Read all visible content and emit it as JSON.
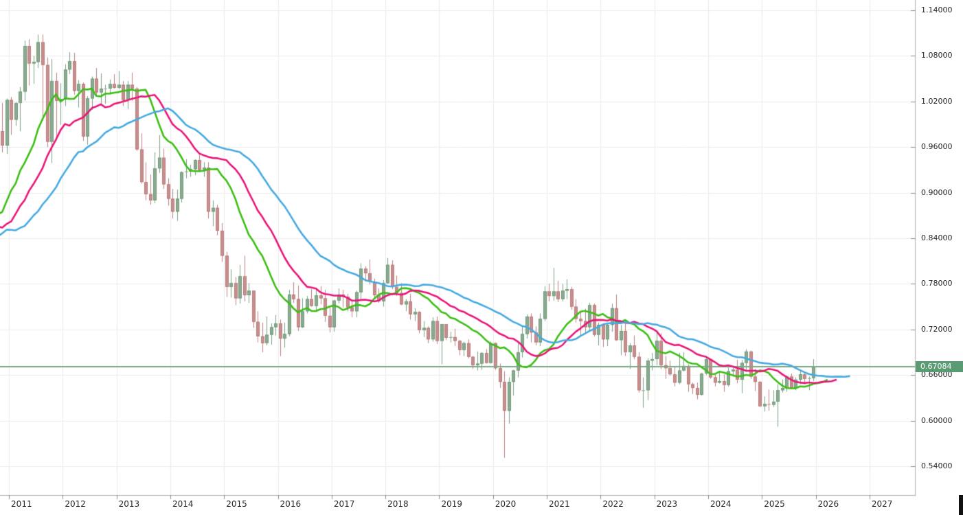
{
  "chart_data": {
    "type": "candlestick",
    "timeframe": "monthly",
    "x_axis": {
      "labels": [
        "2011",
        "2012",
        "2013",
        "2014",
        "2015",
        "2016",
        "2017",
        "2018",
        "2019",
        "2020",
        "2021",
        "2022",
        "2023",
        "2024",
        "2025",
        "2026",
        "2027"
      ]
    },
    "y_axis": {
      "tick_labels": [
        "1.14000",
        "1.08000",
        "1.02000",
        "0.96000",
        "0.90000",
        "0.84000",
        "0.78000",
        "0.72000",
        "0.66000",
        "0.60000",
        "0.54000"
      ],
      "tick_values": [
        1.14,
        1.08,
        1.02,
        0.96,
        0.9,
        0.84,
        0.78,
        0.72,
        0.66,
        0.6,
        0.54
      ],
      "min": 0.54,
      "max": 1.14,
      "grid": true
    },
    "price_line": {
      "value": 0.67084,
      "label": "0.67084"
    },
    "colors": {
      "background": "#ffffff",
      "grid": "#ececec",
      "axis_line": "#b2b2b2",
      "tick_mark": "#8a8a8a",
      "axis_text": "#262626",
      "up_fill": "#8caa91",
      "up_stroke": "#6f9a78",
      "up_wick": "#79a083",
      "down_fill": "#c88f8e",
      "down_stroke": "#b87e7d",
      "down_wick": "#bb807f",
      "price_line": "#7aa882",
      "badge_bg": "#5a9b73",
      "badge_text": "#ffffff",
      "scroll_fragment": "#111111"
    },
    "moving_averages": [
      {
        "name": "fast-ma-green",
        "period": 12,
        "shift_months": 3,
        "color": "#3cbe14"
      },
      {
        "name": "mid-ma-pink",
        "period": 20,
        "shift_months": 5,
        "color": "#e91578"
      },
      {
        "name": "slow-ma-blue",
        "period": 32,
        "shift_months": 8,
        "color": "#46aae1"
      }
    ],
    "ma_seed_closes": {
      "start_month": "2008-01",
      "values": [
        0.885,
        0.929,
        0.913,
        0.936,
        0.953,
        0.958,
        0.932,
        0.86,
        0.799,
        0.67,
        0.648,
        0.698,
        0.64,
        0.639,
        0.691,
        0.731,
        0.804,
        0.806,
        0.836,
        0.842,
        0.882,
        0.901,
        0.915,
        0.898,
        0.887,
        0.894,
        0.916,
        0.925,
        0.847,
        0.84,
        0.905,
        0.894,
        0.967,
        0.981
      ]
    },
    "candles": {
      "start_month": "2010-11",
      "fields": [
        "open",
        "high",
        "low",
        "close"
      ],
      "ohlc": [
        [
          0.981,
          1.018,
          0.953,
          0.962
        ],
        [
          0.962,
          1.024,
          0.951,
          1.022
        ],
        [
          1.022,
          1.026,
          0.976,
          0.996
        ],
        [
          0.996,
          1.019,
          0.988,
          1.018
        ],
        [
          1.018,
          1.039,
          0.981,
          1.033
        ],
        [
          1.033,
          1.1,
          1.021,
          1.093
        ],
        [
          1.093,
          1.102,
          1.041,
          1.07
        ],
        [
          1.07,
          1.08,
          1.043,
          1.072
        ],
        [
          1.072,
          1.108,
          1.064,
          1.098
        ],
        [
          1.098,
          1.108,
          0.995,
          1.068
        ],
        [
          1.068,
          1.078,
          0.96,
          0.967
        ],
        [
          0.967,
          1.076,
          0.939,
          1.047
        ],
        [
          1.047,
          1.058,
          0.969,
          1.021
        ],
        [
          1.021,
          1.044,
          0.989,
          1.023
        ],
        [
          1.023,
          1.069,
          1.014,
          1.062
        ],
        [
          1.062,
          1.085,
          1.056,
          1.073
        ],
        [
          1.073,
          1.084,
          1.029,
          1.034
        ],
        [
          1.034,
          1.048,
          1.012,
          1.043
        ],
        [
          1.043,
          1.045,
          0.968,
          0.974
        ],
        [
          0.974,
          1.027,
          0.963,
          1.024
        ],
        [
          1.024,
          1.053,
          1.009,
          1.05
        ],
        [
          1.05,
          1.064,
          1.029,
          1.032
        ],
        [
          1.032,
          1.057,
          1.016,
          1.037
        ],
        [
          1.037,
          1.042,
          1.017,
          1.037
        ],
        [
          1.037,
          1.049,
          1.029,
          1.043
        ],
        [
          1.043,
          1.056,
          1.037,
          1.038
        ],
        [
          1.038,
          1.06,
          1.036,
          1.042
        ],
        [
          1.042,
          1.047,
          1.014,
          1.022
        ],
        [
          1.022,
          1.047,
          1.01,
          1.042
        ],
        [
          1.042,
          1.058,
          1.021,
          1.037
        ],
        [
          1.037,
          1.039,
          0.955,
          0.957
        ],
        [
          0.957,
          0.978,
          0.912,
          0.914
        ],
        [
          0.914,
          0.94,
          0.89,
          0.898
        ],
        [
          0.898,
          0.924,
          0.884,
          0.89
        ],
        [
          0.89,
          0.953,
          0.886,
          0.932
        ],
        [
          0.932,
          0.976,
          0.926,
          0.946
        ],
        [
          0.946,
          0.958,
          0.905,
          0.911
        ],
        [
          0.911,
          0.919,
          0.883,
          0.892
        ],
        [
          0.892,
          0.905,
          0.866,
          0.875
        ],
        [
          0.875,
          0.904,
          0.863,
          0.892
        ],
        [
          0.892,
          0.928,
          0.887,
          0.927
        ],
        [
          0.927,
          0.944,
          0.919,
          0.928
        ],
        [
          0.928,
          0.937,
          0.921,
          0.931
        ],
        [
          0.931,
          0.944,
          0.923,
          0.943
        ],
        [
          0.943,
          0.95,
          0.927,
          0.93
        ],
        [
          0.93,
          0.94,
          0.921,
          0.933
        ],
        [
          0.933,
          0.94,
          0.866,
          0.875
        ],
        [
          0.875,
          0.89,
          0.856,
          0.88
        ],
        [
          0.88,
          0.884,
          0.844,
          0.85
        ],
        [
          0.85,
          0.86,
          0.809,
          0.817
        ],
        [
          0.817,
          0.822,
          0.763,
          0.776
        ],
        [
          0.776,
          0.799,
          0.762,
          0.781
        ],
        [
          0.781,
          0.789,
          0.752,
          0.761
        ],
        [
          0.761,
          0.805,
          0.754,
          0.79
        ],
        [
          0.79,
          0.817,
          0.757,
          0.765
        ],
        [
          0.765,
          0.781,
          0.755,
          0.771
        ],
        [
          0.771,
          0.771,
          0.722,
          0.73
        ],
        [
          0.73,
          0.744,
          0.703,
          0.711
        ],
        [
          0.711,
          0.729,
          0.69,
          0.702
        ],
        [
          0.702,
          0.737,
          0.699,
          0.713
        ],
        [
          0.713,
          0.728,
          0.7,
          0.723
        ],
        [
          0.723,
          0.739,
          0.712,
          0.728
        ],
        [
          0.728,
          0.733,
          0.685,
          0.708
        ],
        [
          0.708,
          0.729,
          0.696,
          0.714
        ],
        [
          0.714,
          0.772,
          0.711,
          0.766
        ],
        [
          0.766,
          0.782,
          0.755,
          0.76
        ],
        [
          0.76,
          0.778,
          0.718,
          0.723
        ],
        [
          0.723,
          0.761,
          0.722,
          0.744
        ],
        [
          0.744,
          0.764,
          0.741,
          0.76
        ],
        [
          0.76,
          0.773,
          0.75,
          0.751
        ],
        [
          0.751,
          0.772,
          0.744,
          0.765
        ],
        [
          0.765,
          0.777,
          0.753,
          0.761
        ],
        [
          0.761,
          0.772,
          0.73,
          0.738
        ],
        [
          0.738,
          0.75,
          0.716,
          0.723
        ],
        [
          0.723,
          0.759,
          0.717,
          0.758
        ],
        [
          0.758,
          0.774,
          0.754,
          0.766
        ],
        [
          0.766,
          0.772,
          0.749,
          0.763
        ],
        [
          0.763,
          0.767,
          0.744,
          0.749
        ],
        [
          0.749,
          0.757,
          0.736,
          0.744
        ],
        [
          0.744,
          0.771,
          0.736,
          0.769
        ],
        [
          0.769,
          0.807,
          0.76,
          0.8
        ],
        [
          0.8,
          0.803,
          0.783,
          0.794
        ],
        [
          0.794,
          0.812,
          0.779,
          0.783
        ],
        [
          0.783,
          0.787,
          0.762,
          0.765
        ],
        [
          0.765,
          0.774,
          0.755,
          0.757
        ],
        [
          0.757,
          0.785,
          0.75,
          0.781
        ],
        [
          0.781,
          0.814,
          0.78,
          0.805
        ],
        [
          0.805,
          0.811,
          0.773,
          0.776
        ],
        [
          0.776,
          0.791,
          0.764,
          0.768
        ],
        [
          0.768,
          0.781,
          0.752,
          0.753
        ],
        [
          0.753,
          0.76,
          0.744,
          0.757
        ],
        [
          0.757,
          0.767,
          0.733,
          0.74
        ],
        [
          0.74,
          0.748,
          0.731,
          0.743
        ],
        [
          0.743,
          0.744,
          0.715,
          0.719
        ],
        [
          0.719,
          0.731,
          0.71,
          0.722
        ],
        [
          0.722,
          0.724,
          0.702,
          0.707
        ],
        [
          0.707,
          0.736,
          0.704,
          0.731
        ],
        [
          0.731,
          0.737,
          0.701,
          0.705
        ],
        [
          0.705,
          0.727,
          0.674,
          0.727
        ],
        [
          0.727,
          0.727,
          0.706,
          0.709
        ],
        [
          0.709,
          0.717,
          0.703,
          0.71
        ],
        [
          0.71,
          0.721,
          0.698,
          0.705
        ],
        [
          0.705,
          0.706,
          0.686,
          0.693
        ],
        [
          0.693,
          0.704,
          0.685,
          0.702
        ],
        [
          0.702,
          0.707,
          0.682,
          0.684
        ],
        [
          0.684,
          0.685,
          0.668,
          0.673
        ],
        [
          0.673,
          0.691,
          0.666,
          0.675
        ],
        [
          0.675,
          0.69,
          0.667,
          0.689
        ],
        [
          0.689,
          0.694,
          0.675,
          0.676
        ],
        [
          0.676,
          0.704,
          0.675,
          0.702
        ],
        [
          0.702,
          0.703,
          0.667,
          0.669
        ],
        [
          0.669,
          0.675,
          0.643,
          0.651
        ],
        [
          0.651,
          0.665,
          0.551,
          0.613
        ],
        [
          0.613,
          0.657,
          0.596,
          0.651
        ],
        [
          0.651,
          0.667,
          0.633,
          0.666
        ],
        [
          0.666,
          0.702,
          0.657,
          0.69
        ],
        [
          0.69,
          0.724,
          0.683,
          0.714
        ],
        [
          0.714,
          0.74,
          0.708,
          0.737
        ],
        [
          0.737,
          0.741,
          0.703,
          0.716
        ],
        [
          0.716,
          0.724,
          0.699,
          0.703
        ],
        [
          0.703,
          0.741,
          0.698,
          0.734
        ],
        [
          0.734,
          0.777,
          0.731,
          0.77
        ],
        [
          0.77,
          0.78,
          0.757,
          0.764
        ],
        [
          0.764,
          0.801,
          0.758,
          0.77
        ],
        [
          0.77,
          0.784,
          0.756,
          0.76
        ],
        [
          0.76,
          0.78,
          0.757,
          0.771
        ],
        [
          0.771,
          0.786,
          0.76,
          0.773
        ],
        [
          0.773,
          0.776,
          0.746,
          0.75
        ],
        [
          0.75,
          0.76,
          0.729,
          0.734
        ],
        [
          0.734,
          0.744,
          0.711,
          0.731
        ],
        [
          0.731,
          0.747,
          0.716,
          0.723
        ],
        [
          0.723,
          0.755,
          0.719,
          0.752
        ],
        [
          0.752,
          0.754,
          0.711,
          0.713
        ],
        [
          0.713,
          0.729,
          0.699,
          0.726
        ],
        [
          0.726,
          0.728,
          0.697,
          0.707
        ],
        [
          0.707,
          0.728,
          0.698,
          0.726
        ],
        [
          0.726,
          0.754,
          0.717,
          0.748
        ],
        [
          0.748,
          0.766,
          0.705,
          0.706
        ],
        [
          0.706,
          0.726,
          0.686,
          0.718
        ],
        [
          0.718,
          0.727,
          0.685,
          0.69
        ],
        [
          0.69,
          0.702,
          0.668,
          0.699
        ],
        [
          0.699,
          0.712,
          0.681,
          0.684
        ],
        [
          0.684,
          0.69,
          0.637,
          0.64
        ],
        [
          0.64,
          0.657,
          0.617,
          0.64
        ],
        [
          0.64,
          0.682,
          0.627,
          0.679
        ],
        [
          0.679,
          0.689,
          0.666,
          0.681
        ],
        [
          0.681,
          0.716,
          0.673,
          0.705
        ],
        [
          0.705,
          0.715,
          0.668,
          0.673
        ],
        [
          0.673,
          0.685,
          0.655,
          0.669
        ],
        [
          0.669,
          0.679,
          0.659,
          0.661
        ],
        [
          0.661,
          0.672,
          0.645,
          0.65
        ],
        [
          0.65,
          0.689,
          0.648,
          0.666
        ],
        [
          0.666,
          0.69,
          0.665,
          0.672
        ],
        [
          0.672,
          0.674,
          0.638,
          0.648
        ],
        [
          0.648,
          0.65,
          0.635,
          0.643
        ],
        [
          0.643,
          0.65,
          0.628,
          0.634
        ],
        [
          0.634,
          0.663,
          0.633,
          0.662
        ],
        [
          0.662,
          0.685,
          0.66,
          0.681
        ],
        [
          0.681,
          0.681,
          0.655,
          0.657
        ],
        [
          0.657,
          0.661,
          0.645,
          0.65
        ],
        [
          0.65,
          0.664,
          0.649,
          0.652
        ],
        [
          0.652,
          0.661,
          0.638,
          0.647
        ],
        [
          0.647,
          0.67,
          0.645,
          0.665
        ],
        [
          0.665,
          0.67,
          0.658,
          0.667
        ],
        [
          0.667,
          0.68,
          0.649,
          0.654
        ],
        [
          0.654,
          0.68,
          0.636,
          0.676
        ],
        [
          0.676,
          0.694,
          0.664,
          0.691
        ],
        [
          0.691,
          0.692,
          0.655,
          0.658
        ],
        [
          0.658,
          0.668,
          0.639,
          0.651
        ],
        [
          0.651,
          0.652,
          0.618,
          0.619
        ],
        [
          0.619,
          0.632,
          0.612,
          0.622
        ],
        [
          0.622,
          0.641,
          0.613,
          0.621
        ],
        [
          0.621,
          0.64,
          0.618,
          0.625
        ],
        [
          0.625,
          0.648,
          0.592,
          0.64
        ],
        [
          0.64,
          0.654,
          0.637,
          0.643
        ],
        [
          0.643,
          0.659,
          0.638,
          0.658
        ],
        [
          0.658,
          0.662,
          0.642,
          0.643
        ],
        [
          0.643,
          0.657,
          0.64,
          0.654
        ],
        [
          0.654,
          0.666,
          0.648,
          0.661
        ],
        [
          0.661,
          0.663,
          0.648,
          0.655
        ],
        [
          0.655,
          0.658,
          0.64,
          0.656
        ],
        [
          0.656,
          0.681,
          0.652,
          0.67084
        ]
      ]
    }
  }
}
